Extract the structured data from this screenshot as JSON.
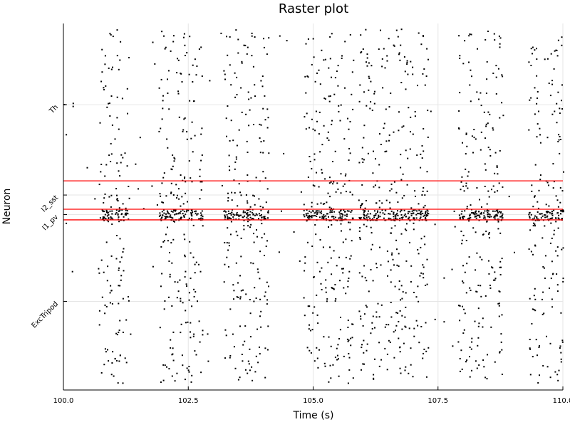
{
  "chart_data": {
    "type": "scatter",
    "title": "Raster plot",
    "xlabel": "Time (s)",
    "ylabel": "Neuron",
    "xlim": [
      100.0,
      110.0
    ],
    "x_ticks": [
      "100.0",
      "102.5",
      "105.0",
      "107.5",
      "110.0"
    ],
    "x_tick_values": [
      100.0,
      102.5,
      105.0,
      107.5,
      110.0
    ],
    "grid": true,
    "colors": {
      "spikes": "#000000",
      "separators": "#ff0000"
    },
    "populations": [
      {
        "name": "ExcTripod",
        "range": [
          0,
          0.46
        ],
        "bursts": [
          [
            100.7,
            101.3
          ],
          [
            101.9,
            102.8
          ],
          [
            103.2,
            104.1
          ],
          [
            104.8,
            105.8
          ],
          [
            105.9,
            107.3
          ],
          [
            107.9,
            108.8
          ],
          [
            109.3,
            110.0
          ]
        ],
        "rate": 0.55
      },
      {
        "name": "I1_pv",
        "range": [
          0.46,
          0.49
        ],
        "bursts": [
          [
            100.7,
            101.3
          ],
          [
            101.9,
            102.8
          ],
          [
            103.2,
            104.1
          ],
          [
            104.8,
            105.8
          ],
          [
            105.9,
            107.3
          ],
          [
            107.9,
            108.8
          ],
          [
            109.3,
            110.0
          ]
        ],
        "rate": 1.0
      },
      {
        "name": "I2_sst",
        "range": [
          0.49,
          0.57
        ],
        "bursts": [
          [
            100.7,
            101.3
          ],
          [
            101.9,
            102.8
          ],
          [
            103.2,
            104.1
          ],
          [
            104.8,
            105.8
          ],
          [
            105.9,
            107.3
          ],
          [
            107.9,
            108.8
          ],
          [
            109.3,
            110.0
          ]
        ],
        "rate": 0.8
      },
      {
        "name": "Th",
        "range": [
          0.57,
          1.0
        ],
        "bursts": [
          [
            100.7,
            101.3
          ],
          [
            101.9,
            102.8
          ],
          [
            103.2,
            104.1
          ],
          [
            104.8,
            105.8
          ],
          [
            105.9,
            107.3
          ],
          [
            107.9,
            108.8
          ],
          [
            109.3,
            110.0
          ]
        ],
        "rate": 0.45
      }
    ],
    "separators": [
      0.46,
      0.49,
      0.57
    ]
  }
}
